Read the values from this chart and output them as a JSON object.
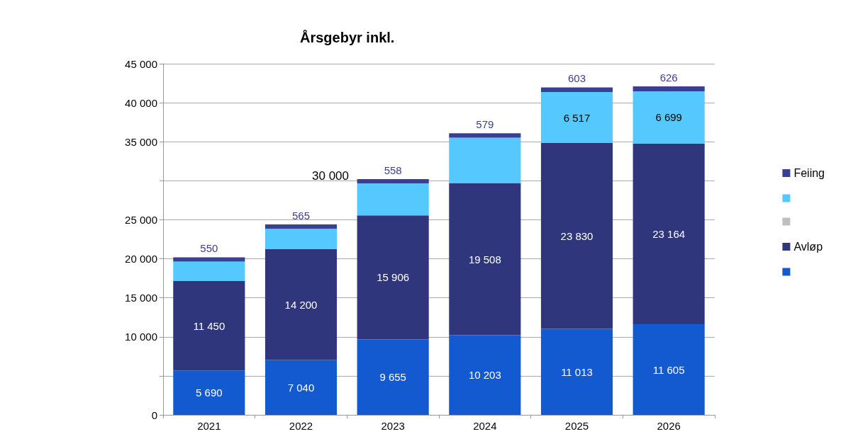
{
  "chart_data": {
    "type": "bar",
    "title": "Årsgebyr inkl.",
    "stacked": true,
    "categories": [
      "2021",
      "2022",
      "2023",
      "2024",
      "2025",
      "2026"
    ],
    "series": [
      {
        "name": null,
        "color": "#135ad1",
        "values": [
          5690,
          7040,
          9655,
          10203,
          11013,
          11605
        ],
        "value_labels": [
          "5 690",
          "7 040",
          "9 655",
          "10 203",
          "11 013",
          "11 605"
        ]
      },
      {
        "name": "Avløp",
        "color": "#30367c",
        "values": [
          11450,
          14200,
          15906,
          19508,
          23830,
          23164
        ],
        "value_labels": [
          "11 450",
          "14 200",
          "15 906",
          "19 508",
          "23 830",
          "23 164"
        ]
      },
      {
        "name": null,
        "color": "#bfbfbf",
        "values": [
          null,
          null,
          null,
          null,
          null,
          null
        ]
      },
      {
        "name": null,
        "color": "#55c9fe",
        "values": [
          2500,
          2600,
          4100,
          5800,
          6517,
          6699
        ],
        "value_labels": [
          null,
          null,
          null,
          null,
          "6 517",
          "6 699"
        ]
      },
      {
        "name": "Feiing",
        "color": "#393f92",
        "values": [
          550,
          565,
          558,
          579,
          603,
          626
        ],
        "value_labels": [
          "550",
          "565",
          "558",
          "579",
          "603",
          "626"
        ]
      }
    ],
    "ylim": [
      0,
      45000
    ],
    "yticks": [
      0,
      {
        "value": 5000,
        "label": null
      },
      {
        "value": 10000,
        "label": "10 000"
      },
      {
        "value": 15000,
        "label": "15 000"
      },
      {
        "value": 20000,
        "label": "20 000"
      },
      {
        "value": 25000,
        "label": "25 000"
      },
      {
        "value": 30000,
        "label": null
      },
      {
        "value": 35000,
        "label": "35 000"
      },
      {
        "value": 40000,
        "label": "40 000"
      },
      {
        "value": 45000,
        "label": "45 000"
      }
    ],
    "annotations": [
      "30 000"
    ],
    "grid": "y",
    "legend": "right"
  }
}
